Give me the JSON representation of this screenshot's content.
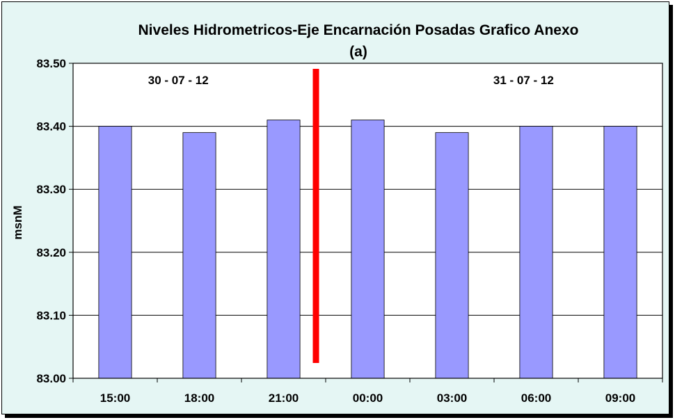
{
  "chart_data": {
    "type": "bar",
    "title": "Niveles Hidrometricos-Eje Encarnación Posadas Grafico Anexo",
    "subtitle": "(a)",
    "xlabel": "",
    "ylabel": "msnM",
    "categories": [
      "15:00",
      "18:00",
      "21:00",
      "00:00",
      "03:00",
      "06:00",
      "09:00"
    ],
    "series": [
      {
        "values": [
          83.4,
          83.39,
          83.41,
          83.41,
          83.39,
          83.4,
          83.4
        ]
      }
    ],
    "ylim": [
      83.0,
      83.5
    ],
    "yticks": [
      "83.00",
      "83.10",
      "83.20",
      "83.30",
      "83.40",
      "83.50"
    ],
    "grid": true,
    "date_labels": [
      "30 - 07 - 12",
      "31 - 07 - 12"
    ],
    "colors": {
      "bar": "#9999ff",
      "background": "#e5f6f4",
      "plot_area": "#ffffff",
      "divider": "#ff0000"
    }
  }
}
